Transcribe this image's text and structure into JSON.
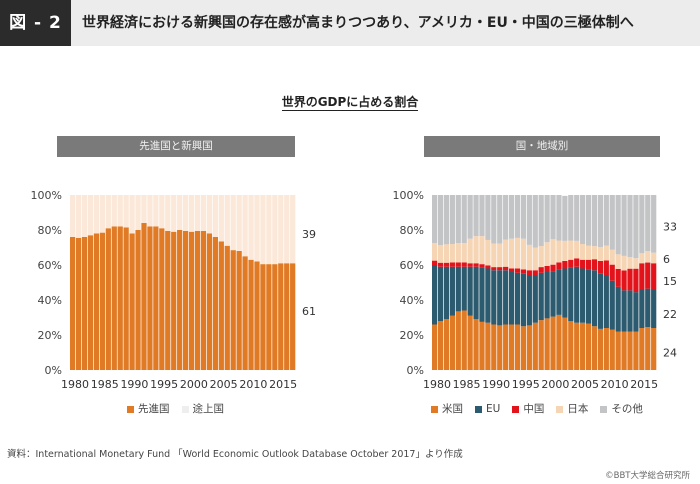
{
  "header": {
    "figure_label": "図 - 2",
    "title": "世界経済における新興国の存在感が高まりつつあり、アメリカ・EU・中国の三極体制へ"
  },
  "main_title": "世界のGDPに占める割合",
  "source": "資料：International Monetary Fund 「World Economic Outlook Database October 2017」より作成",
  "copyright": "©BBT大学総合研究所",
  "colors": {
    "advanced": "#e07a24",
    "emerging": "#fbe8d8",
    "us": "#e07a24",
    "eu": "#2c5a6e",
    "china": "#e3131b",
    "japan": "#f6d5b5",
    "other": "#c3c4c6",
    "panel_header": "#7a7a7a",
    "figure_label_bg": "#2b2b2b"
  },
  "chart_data": [
    {
      "type": "bar",
      "stacked": true,
      "title": "先進国と新興国",
      "xlabel": "",
      "ylabel": "",
      "ylim": [
        0,
        100
      ],
      "y_ticks": [
        "0%",
        "20%",
        "40%",
        "60%",
        "80%",
        "100%"
      ],
      "x_tick_labels": [
        "1980",
        "1985",
        "1990",
        "1995",
        "2000",
        "2005",
        "2010",
        "2015"
      ],
      "legend_position": "bottom",
      "categories": [
        1980,
        1981,
        1982,
        1983,
        1984,
        1985,
        1986,
        1987,
        1988,
        1989,
        1990,
        1991,
        1992,
        1993,
        1994,
        1995,
        1996,
        1997,
        1998,
        1999,
        2000,
        2001,
        2002,
        2003,
        2004,
        2005,
        2006,
        2007,
        2008,
        2009,
        2010,
        2011,
        2012,
        2013,
        2014,
        2015,
        2016,
        2017
      ],
      "series": [
        {
          "name": "先進国",
          "color_key": "advanced",
          "values": [
            76,
            75.5,
            76,
            77,
            78,
            78.5,
            81,
            82,
            82,
            81.5,
            78,
            80,
            84,
            82,
            82,
            81,
            79.5,
            79,
            80,
            79.5,
            79,
            79.5,
            79.5,
            78,
            76,
            73.5,
            71,
            68.5,
            68,
            65,
            63,
            62,
            60.5,
            60.5,
            60.5,
            61,
            61,
            61
          ]
        },
        {
          "name": "途上国",
          "color_key": "emerging",
          "values": [
            24,
            24.5,
            24,
            23,
            22,
            21.5,
            19,
            18,
            18,
            18.5,
            22,
            20,
            16,
            18,
            18,
            19,
            20.5,
            21,
            20,
            20.5,
            21,
            20.5,
            20.5,
            22,
            24,
            26.5,
            29,
            31.5,
            32,
            35,
            37,
            38,
            39.5,
            39.5,
            39.5,
            39,
            39,
            39
          ]
        }
      ],
      "end_labels": [
        "61",
        "39"
      ]
    },
    {
      "type": "bar",
      "stacked": true,
      "title": "国・地域別",
      "xlabel": "",
      "ylabel": "",
      "ylim": [
        0,
        100
      ],
      "y_ticks": [
        "0%",
        "20%",
        "40%",
        "60%",
        "80%",
        "100%"
      ],
      "x_tick_labels": [
        "1980",
        "1985",
        "1990",
        "1995",
        "2000",
        "2005",
        "2010",
        "2015"
      ],
      "legend_position": "bottom",
      "categories": [
        1980,
        1981,
        1982,
        1983,
        1984,
        1985,
        1986,
        1987,
        1988,
        1989,
        1990,
        1991,
        1992,
        1993,
        1994,
        1995,
        1996,
        1997,
        1998,
        1999,
        2000,
        2001,
        2002,
        2003,
        2004,
        2005,
        2006,
        2007,
        2008,
        2009,
        2010,
        2011,
        2012,
        2013,
        2014,
        2015,
        2016,
        2017
      ],
      "series": [
        {
          "name": "米国",
          "color_key": "us",
          "values": [
            26,
            28,
            29,
            31,
            33.5,
            34,
            31,
            29,
            27.5,
            27,
            26,
            25.5,
            26,
            26,
            26,
            25,
            25.5,
            27,
            28.5,
            29.5,
            30.5,
            31.5,
            30,
            28,
            27,
            27,
            26.5,
            25,
            23.5,
            24,
            23,
            22,
            22,
            22,
            22,
            24,
            24.5,
            24
          ]
        },
        {
          "name": "EU",
          "color_key": "eu",
          "values": [
            34,
            31,
            30,
            28,
            25.5,
            25,
            28,
            30,
            31,
            31,
            31,
            31.5,
            31,
            30,
            29.5,
            30,
            28.5,
            27,
            27,
            26.5,
            26,
            26,
            28,
            30.5,
            32,
            31,
            31,
            32,
            31.5,
            30,
            28,
            25.5,
            23.5,
            23.5,
            22.5,
            22,
            22,
            22
          ]
        },
        {
          "name": "中国",
          "color_key": "china",
          "values": [
            2.5,
            2.3,
            2.3,
            2.5,
            2.5,
            2.5,
            2,
            2,
            2,
            1.8,
            1.8,
            1.8,
            2,
            2,
            2.5,
            2.5,
            3,
            3,
            3.3,
            3.5,
            3.7,
            4,
            4.3,
            4.5,
            4.8,
            5,
            5.5,
            6.3,
            7.3,
            8.6,
            9.2,
            10.3,
            11.4,
            12.4,
            13.4,
            15,
            14.9,
            15
          ]
        },
        {
          "name": "日本",
          "color_key": "japan",
          "values": [
            10,
            10,
            10.5,
            10.5,
            11,
            11,
            14,
            15.5,
            16,
            14.5,
            13.5,
            13.5,
            15.5,
            17,
            17.5,
            17.5,
            14.5,
            13,
            12,
            13.5,
            14.5,
            12.5,
            11.5,
            11,
            10,
            9,
            8,
            7.5,
            8,
            8.5,
            8.5,
            8.3,
            8.3,
            6.6,
            6,
            5.7,
            6.5,
            6
          ]
        },
        {
          "name": "その他",
          "color_key": "other",
          "values": [
            27.5,
            28.7,
            28.2,
            28,
            27.5,
            27.5,
            25,
            23.5,
            23.5,
            25.7,
            27.7,
            27.7,
            25.5,
            25,
            24.5,
            25,
            28.5,
            30,
            29.2,
            27,
            25.3,
            26,
            25.7,
            26,
            26.2,
            28,
            29,
            29.2,
            29.7,
            28.9,
            31.3,
            33.9,
            34.8,
            35.5,
            36.1,
            33.3,
            32.1,
            33
          ]
        }
      ],
      "end_labels": [
        "24",
        "22",
        "15",
        "6",
        "33"
      ]
    }
  ]
}
